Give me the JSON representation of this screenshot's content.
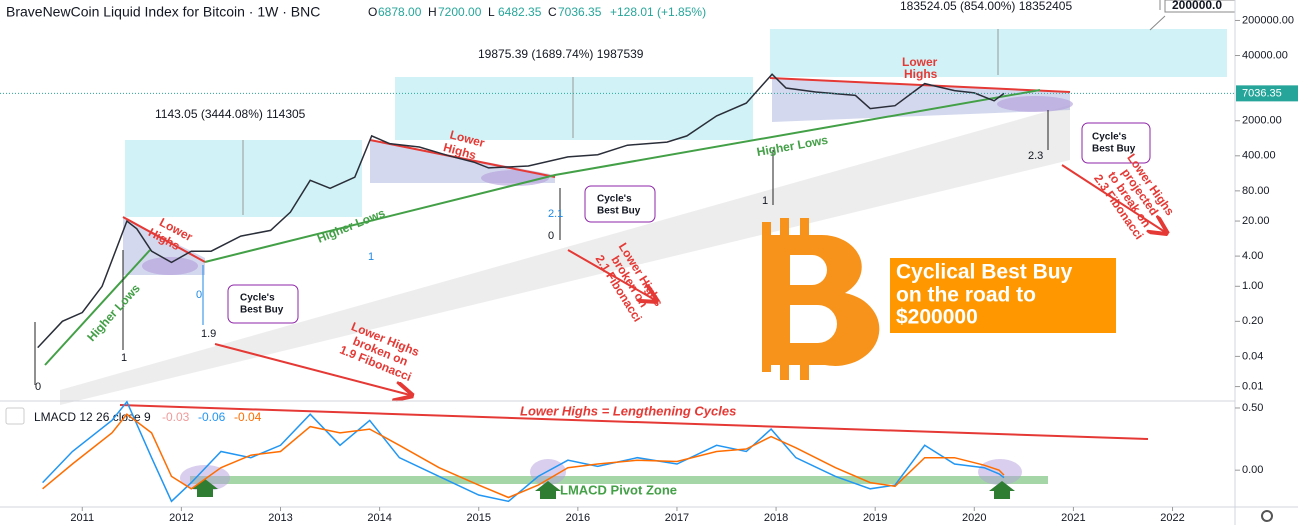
{
  "header": {
    "title": "BraveNewCoin Liquid Index for Bitcoin · 1W · BNC",
    "ohlc": [
      [
        "O",
        "6878.00"
      ],
      [
        "H",
        "7200.00"
      ],
      [
        "L",
        "6482.35"
      ],
      [
        "C",
        "7036.35"
      ]
    ],
    "change": "+128.01 (+1.85%)"
  },
  "chart_data": [
    {
      "type": "line",
      "log_scale": true,
      "color": "#2a2e39",
      "x": [
        2010.55,
        2010.8,
        2011.0,
        2011.2,
        2011.45,
        2011.55,
        2011.7,
        2011.9,
        2012.1,
        2012.3,
        2012.6,
        2012.9,
        2013.1,
        2013.3,
        2013.5,
        2013.75,
        2013.92,
        2014.1,
        2014.4,
        2014.7,
        2014.95,
        2015.1,
        2015.5,
        2015.9,
        2016.2,
        2016.5,
        2016.9,
        2017.1,
        2017.4,
        2017.7,
        2017.96,
        2018.1,
        2018.4,
        2018.8,
        2018.95,
        2019.2,
        2019.5,
        2019.8,
        2020.0,
        2020.2,
        2020.3
      ],
      "values": [
        0.06,
        0.2,
        0.3,
        1,
        20,
        14,
        5,
        3,
        5,
        5,
        10,
        13,
        30,
        130,
        90,
        150,
        1000,
        700,
        600,
        400,
        300,
        230,
        250,
        380,
        420,
        650,
        750,
        1000,
        2500,
        4500,
        17000,
        9000,
        7500,
        6400,
        3500,
        4000,
        11000,
        8000,
        7200,
        5000,
        7036.35
      ],
      "last_value": 7036.35,
      "xlim": [
        2010.17,
        2022.6
      ],
      "xticks": [
        2011,
        2012,
        2013,
        2014,
        2015,
        2016,
        2017,
        2018,
        2019,
        2020,
        2021,
        2022
      ],
      "ylim": [
        0.0054,
        512000
      ],
      "yticks": [
        {
          "value": 200000,
          "label": "200000.00"
        },
        {
          "value": 40000,
          "label": "40000.00"
        },
        {
          "value": 2000,
          "label": "2000.00"
        },
        {
          "value": 400,
          "label": "400.00"
        },
        {
          "value": 80,
          "label": "80.00"
        },
        {
          "value": 20,
          "label": "20.00"
        },
        {
          "value": 4,
          "label": "4.00"
        },
        {
          "value": 1,
          "label": "1.00"
        },
        {
          "value": 0.2,
          "label": "0.20"
        },
        {
          "value": 0.04,
          "label": "0.04"
        },
        {
          "value": 0.01,
          "label": "0.01"
        }
      ]
    },
    {
      "type": "line",
      "name": "LMACD 12 26 close 9",
      "legend_values": [
        -0.03,
        -0.06,
        -0.04
      ],
      "x": [
        2010.6,
        2010.9,
        2011.3,
        2011.45,
        2011.7,
        2011.9,
        2012.1,
        2012.4,
        2012.7,
        2013.0,
        2013.3,
        2013.6,
        2013.9,
        2014.2,
        2014.6,
        2015.0,
        2015.3,
        2015.6,
        2015.9,
        2016.2,
        2016.6,
        2017.0,
        2017.4,
        2017.7,
        2017.95,
        2018.2,
        2018.6,
        2018.95,
        2019.2,
        2019.5,
        2019.8,
        2020.1,
        2020.25,
        2020.3
      ],
      "series": [
        {
          "color": "#2196f3",
          "values": [
            -0.1,
            0.15,
            0.4,
            0.55,
            0.1,
            -0.25,
            -0.1,
            0.15,
            0.1,
            0.2,
            0.45,
            0.2,
            0.4,
            0.1,
            -0.05,
            -0.2,
            -0.25,
            -0.05,
            0.08,
            0.03,
            0.1,
            0.05,
            0.2,
            0.15,
            0.33,
            0.1,
            -0.05,
            -0.15,
            -0.12,
            0.2,
            0.05,
            0.02,
            -0.03,
            -0.06
          ]
        },
        {
          "color": "#ff6d00",
          "values": [
            -0.15,
            0.05,
            0.3,
            0.45,
            0.3,
            -0.05,
            -0.15,
            0.02,
            0.12,
            0.15,
            0.35,
            0.3,
            0.33,
            0.2,
            0.02,
            -0.12,
            -0.22,
            -0.12,
            0.02,
            0.05,
            0.08,
            0.07,
            0.15,
            0.17,
            0.27,
            0.18,
            0.02,
            -0.1,
            -0.13,
            0.1,
            0.1,
            0.04,
            0.0,
            -0.04
          ]
        }
      ],
      "xlim": [
        2010.17,
        2022.6
      ],
      "ylim": [
        -0.28,
        0.54
      ],
      "yticks": [
        {
          "value": 0.5,
          "label": "0.50"
        },
        {
          "value": 0,
          "label": "0.00"
        }
      ]
    }
  ],
  "annotations": {
    "measures": [
      "1143.05 (3444.08%) 114305",
      "19875.39 (1689.74%) 1987539",
      "183524.05 (854.00%) 18352405",
      "200000.0"
    ],
    "lower_highs": [
      [
        "Lower",
        "Highs"
      ],
      [
        "Lower",
        "Highs"
      ],
      [
        "Lower",
        "Highs"
      ]
    ],
    "higher_lows": [
      "Higher Lows",
      "Higher Lows",
      "Higher Lows"
    ],
    "best_buy": [
      [
        "Cycle's",
        "Best Buy"
      ],
      [
        "Cycle's",
        "Best Buy"
      ],
      [
        "Cycle's",
        "Best Buy"
      ]
    ],
    "fib": [
      "0",
      "1",
      "1.9",
      "0",
      "1",
      "0",
      "1",
      "2.1",
      "0",
      "1",
      "2.3"
    ],
    "broken": [
      [
        "Lower Highs",
        "broken on",
        "1.9 Fibonacci"
      ],
      [
        "Lower Highs",
        "broken on",
        "2.1 Fibonacci"
      ],
      [
        "Lower Highs",
        "projected",
        "to break on",
        "2.3 Fibonacci"
      ]
    ],
    "promo": [
      "Cyclical Best Buy",
      "on the road to",
      "$200000"
    ],
    "macd_title": "Lower Highs = Lengthening Cycles",
    "pivot": "LMACD Pivot Zone"
  }
}
